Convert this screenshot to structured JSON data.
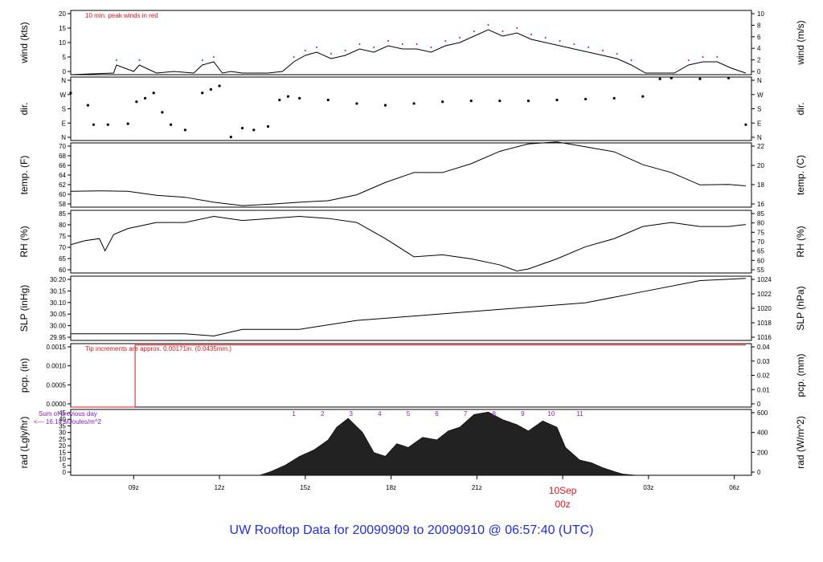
{
  "chart_data": {
    "type": "line",
    "x_ticks": [
      "09z",
      "12z",
      "15z",
      "18z",
      "21z",
      "03z",
      "06z"
    ],
    "date_label": {
      "date": "10Sep",
      "hour": "00z"
    },
    "colors": {
      "axis": "#000000",
      "peak": "#e0141e",
      "note": "#e0141e",
      "rad_label": "#8a1cc8",
      "date": "#e0141e",
      "footer": "#1f2fd8"
    },
    "panels": [
      {
        "id": "wind",
        "left_label": "wind (kts)",
        "right_label": "wind (m/s)",
        "left_ticks": [
          "0",
          "5",
          "10",
          "15",
          "20"
        ],
        "right_ticks": [
          "0",
          "2",
          "4",
          "6",
          "8",
          "10"
        ],
        "ylim": [
          0,
          20
        ],
        "annotation": "10 min. peak winds in red",
        "series": [
          {
            "name": "wind",
            "x": [
              0,
              1.5,
              1.6,
              2.2,
              2.4,
              3.0,
              3.6,
              4.3,
              4.6,
              5.0,
              5.3,
              5.6,
              6.0,
              6.4,
              6.9,
              7.4,
              7.8,
              8.2,
              8.6,
              9.1,
              9.6,
              10.1,
              10.6,
              11.1,
              11.6,
              12.1,
              12.6,
              13.1,
              13.6,
              14.1,
              14.6,
              15.1,
              15.6,
              16.1,
              16.6,
              17.1,
              17.6,
              18.1,
              18.6,
              19.1,
              19.6,
              20.1,
              20.6,
              21.1,
              21.6,
              22.1,
              22.6,
              23.1,
              23.6
            ],
            "y": [
              0,
              0.5,
              3,
              1,
              3,
              0.5,
              1,
              0.5,
              3,
              4,
              0.5,
              1,
              0.5,
              0.5,
              0.5,
              1,
              4,
              6,
              7,
              5,
              6,
              8,
              7,
              9,
              8,
              8,
              7,
              9,
              10,
              12,
              14,
              12,
              13,
              11,
              10,
              9,
              8,
              7,
              6,
              5,
              3,
              0.5,
              0.5,
              0.5,
              3,
              4,
              4,
              2,
              0.5
            ]
          }
        ]
      },
      {
        "id": "dir",
        "left_label": "dir.",
        "right_label": "dir.",
        "left_ticks": [
          "N",
          "E",
          "S",
          "W",
          "N"
        ],
        "right_ticks": [
          "N",
          "E",
          "S",
          "W",
          "N"
        ],
        "ylim": [
          0,
          360
        ],
        "series": [
          {
            "name": "direction",
            "x": [
              0,
              0.6,
              0.8,
              1.3,
              2.0,
              2.3,
              2.6,
              2.9,
              3.2,
              3.5,
              4.0,
              4.6,
              4.9,
              5.2,
              5.6,
              6.0,
              6.4,
              6.9,
              7.3,
              7.6,
              8.0,
              9,
              10,
              11,
              12,
              13,
              14,
              15,
              16,
              17,
              18,
              19,
              20,
              20.6,
              21,
              22,
              23,
              23.6
            ],
            "y": [
              270,
              200,
              90,
              90,
              95,
              220,
              240,
              270,
              160,
              90,
              60,
              270,
              290,
              310,
              20,
              70,
              60,
              80,
              230,
              250,
              240,
              230,
              210,
              200,
              210,
              220,
              225,
              225,
              225,
              230,
              235,
              240,
              250,
              350,
              355,
              350,
              355,
              90
            ]
          }
        ]
      },
      {
        "id": "temp",
        "left_label": "temp. (F)",
        "right_label": "temp. (C)",
        "left_ticks": [
          "58",
          "60",
          "62",
          "64",
          "66",
          "68",
          "70"
        ],
        "right_ticks": [
          "16",
          "18",
          "20",
          "22"
        ],
        "ylim": [
          58,
          71
        ],
        "series": [
          {
            "name": "temperature",
            "x": [
              0,
              1,
              2,
              3,
              4,
              5,
              6,
              7,
              8,
              9,
              10,
              11,
              12,
              13,
              14,
              15,
              16,
              17,
              18,
              19,
              20,
              21,
              22,
              23,
              23.6
            ],
            "y": [
              61.2,
              61.3,
              61.2,
              60.4,
              60.0,
              59.0,
              58.3,
              58.6,
              59.0,
              59.3,
              60.5,
              63.0,
              65.0,
              65.0,
              66.8,
              69.3,
              70.8,
              71.2,
              70.2,
              69.2,
              66.6,
              65.0,
              62.5,
              62.6,
              62.3
            ]
          }
        ]
      },
      {
        "id": "rh",
        "left_label": "RH (%)",
        "right_label": "RH (%)",
        "left_ticks": [
          "60",
          "65",
          "70",
          "75",
          "80",
          "85"
        ],
        "right_ticks": [
          "55",
          "60",
          "65",
          "70",
          "75",
          "80",
          "85"
        ],
        "ylim": [
          55,
          86
        ],
        "series": [
          {
            "name": "relative humidity",
            "x": [
              0,
              0.5,
              1,
              1.2,
              1.5,
              2,
              3,
              4,
              5,
              6,
              7,
              8,
              9,
              10,
              11,
              12,
              13,
              14,
              15,
              15.6,
              16,
              17,
              18,
              19,
              20,
              21,
              22,
              23,
              23.6
            ],
            "y": [
              69,
              71,
              72,
              66,
              74,
              77,
              80,
              80,
              83,
              81,
              82,
              83,
              82,
              80,
              72,
              63,
              64,
              62,
              59,
              56,
              57,
              62,
              68,
              72,
              78,
              80,
              78,
              78,
              79
            ]
          }
        ]
      },
      {
        "id": "slp",
        "left_label": "SLP (inHg)",
        "right_label": "SLP (hPa)",
        "left_ticks": [
          "29.95",
          "30.00",
          "30.05",
          "30.10",
          "30.15",
          "30.20"
        ],
        "right_ticks": [
          "1016",
          "1018",
          "1020",
          "1022",
          "1024"
        ],
        "ylim": [
          29.95,
          30.24
        ],
        "series": [
          {
            "name": "sea level pressure",
            "x": [
              0,
              2,
              4,
              5,
              6,
              8,
              10,
              12,
              14,
              16,
              18,
              20,
              22,
              23.6
            ],
            "y": [
              29.98,
              29.98,
              29.98,
              29.97,
              30.0,
              30.0,
              30.04,
              30.06,
              30.08,
              30.1,
              30.12,
              30.17,
              30.22,
              30.23
            ]
          }
        ]
      },
      {
        "id": "pcp",
        "left_label": "pcp. (in)",
        "right_label": "pcp. (mm)",
        "left_ticks": [
          "0.0000",
          "0.0005",
          "0.0010",
          "0.0015"
        ],
        "right_ticks": [
          "0",
          "0.01",
          "0.02",
          "0.03",
          "0.04"
        ],
        "ylim": [
          0,
          0.00175
        ],
        "annotation": "Tip increments are approx. 0.00171in. (0.0435mm.)",
        "series": [
          {
            "name": "precipitation",
            "x": [
              0,
              2.25,
              2.25,
              23.6
            ],
            "y": [
              0,
              0,
              0.00171,
              0.00171
            ]
          }
        ]
      },
      {
        "id": "rad",
        "left_label": "rad (Lgly/hr)",
        "right_label": "rad (W/m^2)",
        "left_ticks": [
          "0",
          "5",
          "10",
          "15",
          "20",
          "25",
          "30",
          "35",
          "40",
          "45"
        ],
        "right_ticks": [
          "0",
          "200",
          "400",
          "600"
        ],
        "ylim": [
          0,
          52
        ],
        "hour_marks": [
          "1",
          "2",
          "3",
          "4",
          "5",
          "6",
          "7",
          "8",
          "9",
          "10",
          "11"
        ],
        "annotation_1": "Sum of previous day",
        "annotation_2": "<--- 16.14 MJoules/m^2",
        "series": [
          {
            "name": "radiation",
            "x": [
              6.6,
              7.0,
              7.5,
              8.0,
              8.5,
              9.0,
              9.3,
              9.7,
              10.2,
              10.6,
              11.0,
              11.4,
              11.8,
              12.3,
              12.8,
              13.2,
              13.6,
              14.1,
              14.6,
              15.1,
              15.6,
              16.0,
              16.5,
              17.0,
              17.3,
              17.8,
              18.2,
              18.6,
              19.0,
              19.3,
              19.8
            ],
            "y": [
              0,
              3,
              8,
              15,
              20,
              28,
              38,
              45,
              34,
              18,
              15,
              25,
              22,
              30,
              28,
              35,
              38,
              48,
              50,
              44,
              40,
              35,
              43,
              38,
              22,
              12,
              10,
              6,
              3,
              1,
              0
            ]
          }
        ]
      }
    ]
  },
  "footer": {
    "title": "UW Rooftop Data for 20090909  to  20090910 @ 06:57:40  (UTC)"
  }
}
